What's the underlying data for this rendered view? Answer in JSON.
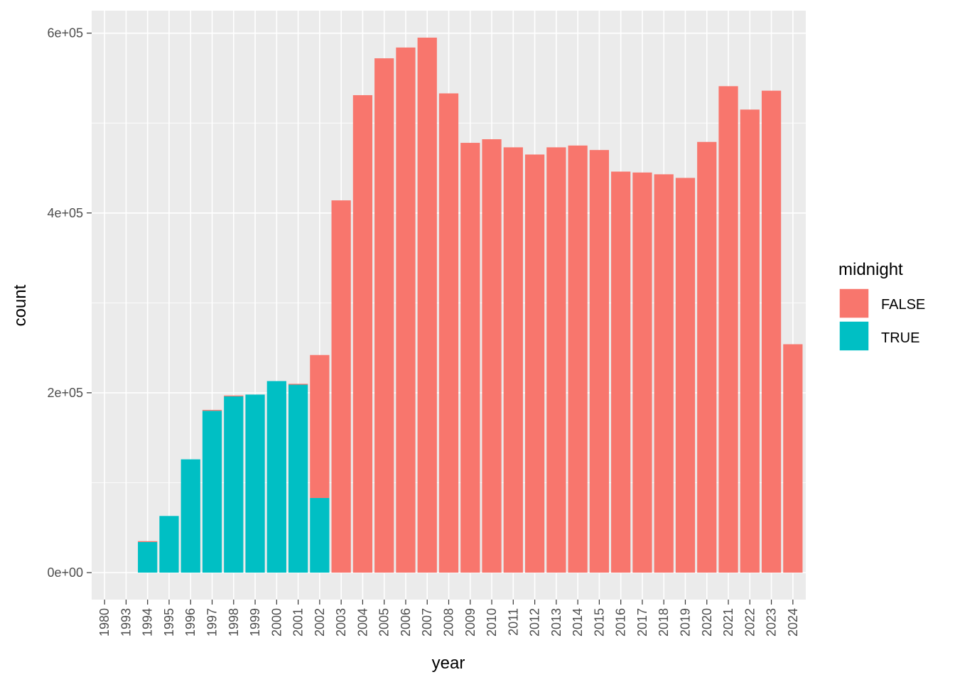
{
  "chart_data": {
    "type": "bar",
    "stacked": true,
    "xlabel": "year",
    "ylabel": "count",
    "categories": [
      "1980",
      "1993",
      "1994",
      "1995",
      "1996",
      "1997",
      "1998",
      "1999",
      "2000",
      "2001",
      "2002",
      "2003",
      "2004",
      "2005",
      "2006",
      "2007",
      "2008",
      "2009",
      "2010",
      "2011",
      "2012",
      "2013",
      "2014",
      "2015",
      "2016",
      "2017",
      "2018",
      "2019",
      "2020",
      "2021",
      "2022",
      "2023",
      "2024"
    ],
    "series": [
      {
        "name": "FALSE",
        "color": "#F8766D",
        "values": [
          0,
          0,
          1000,
          0,
          0,
          1000,
          1000,
          0,
          0,
          1000,
          159000,
          414000,
          531000,
          572000,
          584000,
          595000,
          533000,
          478000,
          482000,
          473000,
          465000,
          473000,
          475000,
          470000,
          446000,
          445000,
          443000,
          439000,
          479000,
          541000,
          515000,
          536000,
          254000
        ]
      },
      {
        "name": "TRUE",
        "color": "#00BFC4",
        "values": [
          0,
          0,
          34000,
          63000,
          126000,
          180000,
          196000,
          198000,
          213000,
          209000,
          83000,
          0,
          0,
          0,
          0,
          0,
          0,
          0,
          0,
          0,
          0,
          0,
          0,
          0,
          0,
          0,
          0,
          0,
          0,
          0,
          0,
          0,
          0
        ]
      }
    ],
    "y_ticks": [
      "0e+00",
      "2e+05",
      "4e+05",
      "6e+05"
    ],
    "y_tick_values": [
      0,
      200000,
      400000,
      600000
    ],
    "ylim": [
      -30000,
      625000
    ],
    "grid": true,
    "legend_position": "right",
    "panel_background": "#EBEBEB"
  },
  "legend": {
    "title": "midnight",
    "items": [
      {
        "label": "FALSE",
        "color": "#F8766D"
      },
      {
        "label": "TRUE",
        "color": "#00BFC4"
      }
    ]
  }
}
